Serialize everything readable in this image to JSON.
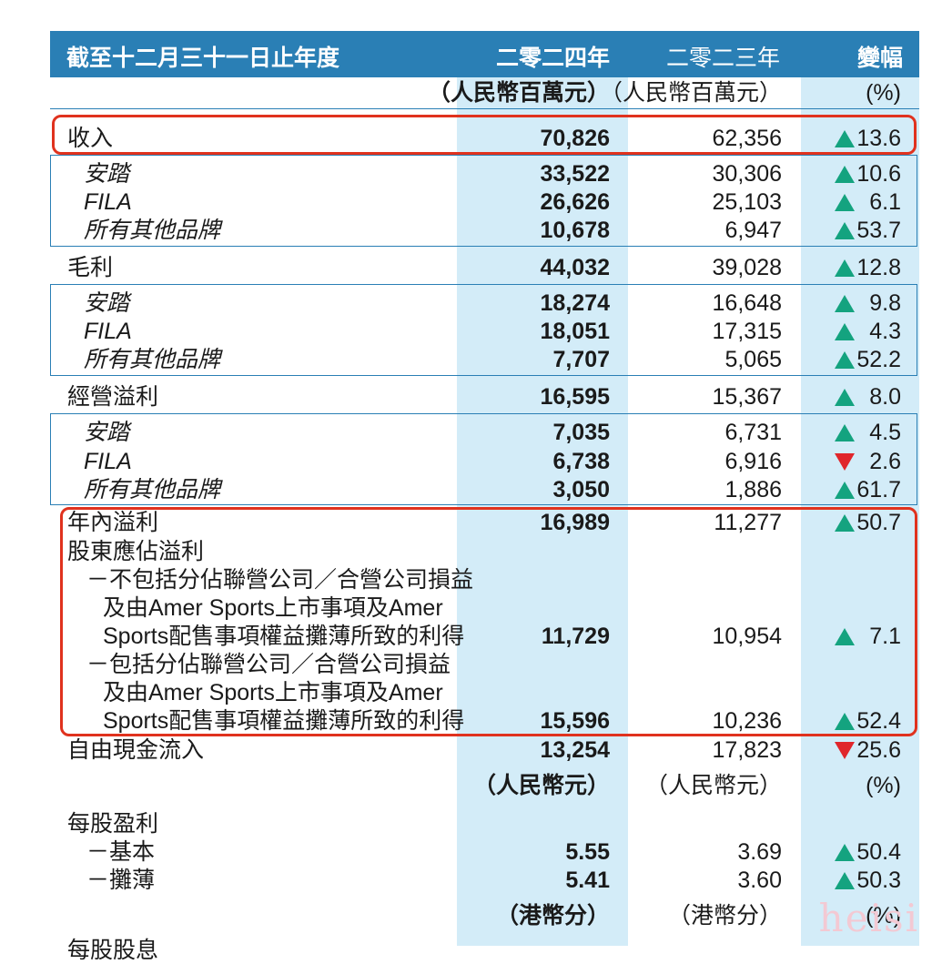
{
  "header": {
    "title": "截至十二月三十一日止年度",
    "col_2024": "二零二四年",
    "col_2023": "二零二三年",
    "col_change": "變幅"
  },
  "units_1": {
    "c2024": "（人民幣百萬元）",
    "c2023": "（人民幣百萬元）",
    "change": "(%)"
  },
  "units_2": {
    "c2024": "（人民幣元）",
    "c2023": "（人民幣元）",
    "change": "(%)"
  },
  "units_3": {
    "c2024": "（港幣分）",
    "c2023": "（港幣分）",
    "change": "(%)"
  },
  "rows": [
    {
      "label": "收入",
      "v2024": "70,826",
      "v2023": "62,356",
      "direction": "up",
      "change": "13.6"
    },
    {
      "label": "安踏",
      "v2024": "33,522",
      "v2023": "30,306",
      "direction": "up",
      "change": "10.6"
    },
    {
      "label": "FILA",
      "v2024": "26,626",
      "v2023": "25,103",
      "direction": "up",
      "change": "6.1"
    },
    {
      "label": "所有其他品牌",
      "v2024": "10,678",
      "v2023": "6,947",
      "direction": "up",
      "change": "53.7"
    },
    {
      "label": "毛利",
      "v2024": "44,032",
      "v2023": "39,028",
      "direction": "up",
      "change": "12.8"
    },
    {
      "label": "安踏",
      "v2024": "18,274",
      "v2023": "16,648",
      "direction": "up",
      "change": "9.8"
    },
    {
      "label": "FILA",
      "v2024": "18,051",
      "v2023": "17,315",
      "direction": "up",
      "change": "4.3"
    },
    {
      "label": "所有其他品牌",
      "v2024": "7,707",
      "v2023": "5,065",
      "direction": "up",
      "change": "52.2"
    },
    {
      "label": "經營溢利",
      "v2024": "16,595",
      "v2023": "15,367",
      "direction": "up",
      "change": "8.0"
    },
    {
      "label": "安踏",
      "v2024": "7,035",
      "v2023": "6,731",
      "direction": "up",
      "change": "4.5"
    },
    {
      "label": "FILA",
      "v2024": "6,738",
      "v2023": "6,916",
      "direction": "down",
      "change": "2.6"
    },
    {
      "label": "所有其他品牌",
      "v2024": "3,050",
      "v2023": "1,886",
      "direction": "up",
      "change": "61.7"
    },
    {
      "label": "年內溢利",
      "v2024": "16,989",
      "v2023": "11,277",
      "direction": "up",
      "change": "50.7"
    }
  ],
  "attributable": {
    "label": "股東應佔溢利",
    "excl_lines": [
      "－不包括分佔聯營公司／合營公司損益",
      "及由Amer Sports上市事項及Amer",
      "Sports配售事項權益攤薄所致的利得"
    ],
    "excl": {
      "v2024": "11,729",
      "v2023": "10,954",
      "direction": "up",
      "change": "7.1"
    },
    "incl_lines": [
      "－包括分佔聯營公司／合營公司損益",
      "及由Amer Sports上市事項及Amer",
      "Sports配售事項權益攤薄所致的利得"
    ],
    "incl": {
      "v2024": "15,596",
      "v2023": "10,236",
      "direction": "up",
      "change": "52.4"
    }
  },
  "fcf": {
    "label": "自由現金流入",
    "v2024": "13,254",
    "v2023": "17,823",
    "direction": "down",
    "change": "25.6"
  },
  "eps": {
    "label": "每股盈利",
    "basic": {
      "label": "－基本",
      "v2024": "5.55",
      "v2023": "3.69",
      "direction": "up",
      "change": "50.4"
    },
    "diluted": {
      "label": "－攤薄",
      "v2024": "5.41",
      "v2023": "3.60",
      "direction": "up",
      "change": "50.3"
    }
  },
  "cut_label": "每股股息",
  "watermark": "heisi",
  "colors": {
    "header_bg": "#2a7fb5",
    "column_highlight": "#d3ecf8",
    "up": "#14a37f",
    "down": "#e0262b",
    "callout": "#e0321e"
  }
}
